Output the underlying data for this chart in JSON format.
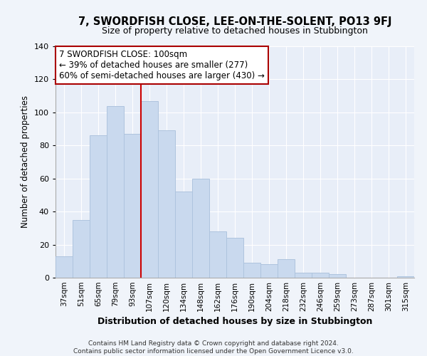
{
  "title": "7, SWORDFISH CLOSE, LEE-ON-THE-SOLENT, PO13 9FJ",
  "subtitle": "Size of property relative to detached houses in Stubbington",
  "xlabel": "Distribution of detached houses by size in Stubbington",
  "ylabel": "Number of detached properties",
  "bar_labels": [
    "37sqm",
    "51sqm",
    "65sqm",
    "79sqm",
    "93sqm",
    "107sqm",
    "120sqm",
    "134sqm",
    "148sqm",
    "162sqm",
    "176sqm",
    "190sqm",
    "204sqm",
    "218sqm",
    "232sqm",
    "246sqm",
    "259sqm",
    "273sqm",
    "287sqm",
    "301sqm",
    "315sqm"
  ],
  "bar_values": [
    13,
    35,
    86,
    104,
    87,
    107,
    89,
    52,
    60,
    28,
    24,
    9,
    8,
    11,
    3,
    3,
    2,
    0,
    0,
    0,
    1
  ],
  "bar_color": "#c9d9ee",
  "bar_edge_color": "#aec4de",
  "reference_line_x": 4.5,
  "reference_line_color": "#cc0000",
  "annotation_title": "7 SWORDFISH CLOSE: 100sqm",
  "annotation_line1": "← 39% of detached houses are smaller (277)",
  "annotation_line2": "60% of semi-detached houses are larger (430) →",
  "annotation_box_facecolor": "#ffffff",
  "annotation_box_edgecolor": "#aa0000",
  "footer_line1": "Contains HM Land Registry data © Crown copyright and database right 2024.",
  "footer_line2": "Contains public sector information licensed under the Open Government Licence v3.0.",
  "ylim": [
    0,
    140
  ],
  "yticks": [
    0,
    20,
    40,
    60,
    80,
    100,
    120,
    140
  ],
  "fig_bg": "#f0f4fa",
  "plot_bg": "#e8eef8",
  "grid_color": "#ffffff",
  "title_fontsize": 10.5,
  "subtitle_fontsize": 9,
  "ylabel_fontsize": 8.5,
  "xlabel_fontsize": 9,
  "tick_fontsize": 7.5,
  "footer_fontsize": 6.5
}
